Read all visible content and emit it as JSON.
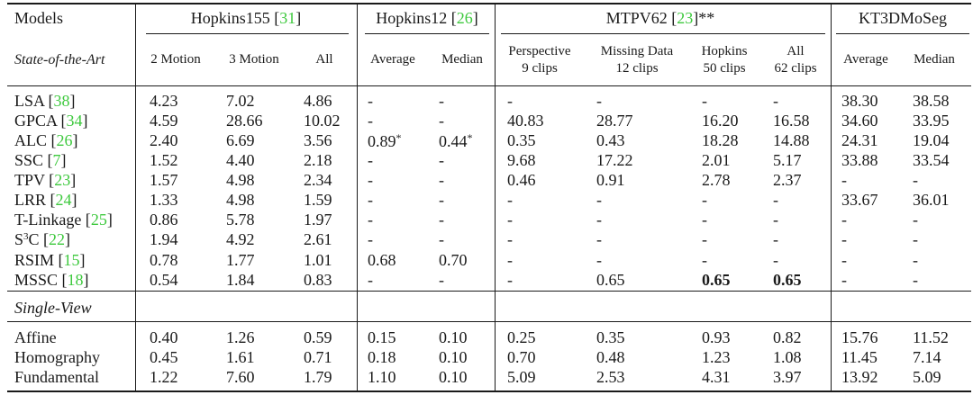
{
  "header": {
    "models": "Models",
    "groups": [
      {
        "name": "Hopkins155 [",
        "ref": "31",
        "end": "]"
      },
      {
        "name": "Hopkins12 [",
        "ref": "26",
        "end": "]"
      },
      {
        "name": "MTPV62 [",
        "ref": "23",
        "end": "]**"
      },
      {
        "name": "KT3DMoSeg",
        "ref": "",
        "end": ""
      }
    ],
    "section1": "State-of-the-Art",
    "section2": "Single-View",
    "subheaders": [
      {
        "l1": "2 Motion",
        "l2": ""
      },
      {
        "l1": "3 Motion",
        "l2": ""
      },
      {
        "l1": "All",
        "l2": ""
      },
      {
        "l1": "Average",
        "l2": ""
      },
      {
        "l1": "Median",
        "l2": ""
      },
      {
        "l1": "Perspective",
        "l2": "9 clips"
      },
      {
        "l1": "Missing Data",
        "l2": "12 clips"
      },
      {
        "l1": "Hopkins",
        "l2": "50 clips"
      },
      {
        "l1": "All",
        "l2": "62 clips"
      },
      {
        "l1": "Average",
        "l2": ""
      },
      {
        "l1": "Median",
        "l2": ""
      }
    ]
  },
  "sota_rows": [
    {
      "name": "LSA [",
      "ref": "38",
      "end": "]",
      "vals": [
        "4.23",
        "7.02",
        "4.86",
        "-",
        "-",
        "-",
        "-",
        "-",
        "-",
        "38.30",
        "38.58"
      ]
    },
    {
      "name": "GPCA [",
      "ref": "34",
      "end": "]",
      "vals": [
        "4.59",
        "28.66",
        "10.02",
        "-",
        "-",
        "40.83",
        "28.77",
        "16.20",
        "16.58",
        "34.60",
        "33.95"
      ]
    },
    {
      "name": "ALC [",
      "ref": "26",
      "end": "]",
      "vals": [
        "2.40",
        "6.69",
        "3.56",
        "0.89*",
        "0.44*",
        "0.35",
        "0.43",
        "18.28",
        "14.88",
        "24.31",
        "19.04"
      ]
    },
    {
      "name": "SSC [",
      "ref": "7",
      "end": "]",
      "vals": [
        "1.52",
        "4.40",
        "2.18",
        "-",
        "-",
        "9.68",
        "17.22",
        "2.01",
        "5.17",
        "33.88",
        "33.54"
      ]
    },
    {
      "name": "TPV [",
      "ref": "23",
      "end": "]",
      "vals": [
        "1.57",
        "4.98",
        "2.34",
        "-",
        "-",
        "0.46",
        "0.91",
        "2.78",
        "2.37",
        "-",
        "-"
      ]
    },
    {
      "name": "LRR [",
      "ref": "24",
      "end": "]",
      "vals": [
        "1.33",
        "4.98",
        "1.59",
        "-",
        "-",
        "-",
        "-",
        "-",
        "-",
        "33.67",
        "36.01"
      ]
    },
    {
      "name": "T-Linkage [",
      "ref": "25",
      "end": "]",
      "vals": [
        "0.86",
        "5.78",
        "1.97",
        "-",
        "-",
        "-",
        "-",
        "-",
        "-",
        "-",
        "-"
      ]
    },
    {
      "name": "S",
      "sup": "3",
      "name2": "C [",
      "ref": "22",
      "end": "]",
      "vals": [
        "1.94",
        "4.92",
        "2.61",
        "-",
        "-",
        "-",
        "-",
        "-",
        "-",
        "-",
        "-"
      ]
    },
    {
      "name": "RSIM [",
      "ref": "15",
      "end": "]",
      "vals": [
        "0.78",
        "1.77",
        "1.01",
        "0.68",
        "0.70",
        "-",
        "-",
        "-",
        "-",
        "-",
        "-"
      ]
    },
    {
      "name": "MSSC [",
      "ref": "18",
      "end": "]",
      "vals": [
        "0.54",
        "1.84",
        "0.83",
        "-",
        "-",
        "-",
        "0.65",
        "0.65",
        "0.65",
        "-",
        "-"
      ],
      "bold": [
        7,
        8
      ]
    }
  ],
  "sv_rows": [
    {
      "name": "Affine",
      "vals": [
        "0.40",
        "1.26",
        "0.59",
        "0.15",
        "0.10",
        "0.25",
        "0.35",
        "0.93",
        "0.82",
        "15.76",
        "11.52"
      ]
    },
    {
      "name": "Homography",
      "vals": [
        "0.45",
        "1.61",
        "0.71",
        "0.18",
        "0.10",
        "0.70",
        "0.48",
        "1.23",
        "1.08",
        "11.45",
        "7.14"
      ]
    },
    {
      "name": "Fundamental",
      "vals": [
        "1.22",
        "7.60",
        "1.79",
        "1.10",
        "0.10",
        "5.09",
        "2.53",
        "4.31",
        "3.97",
        "13.92",
        "5.09"
      ]
    }
  ]
}
